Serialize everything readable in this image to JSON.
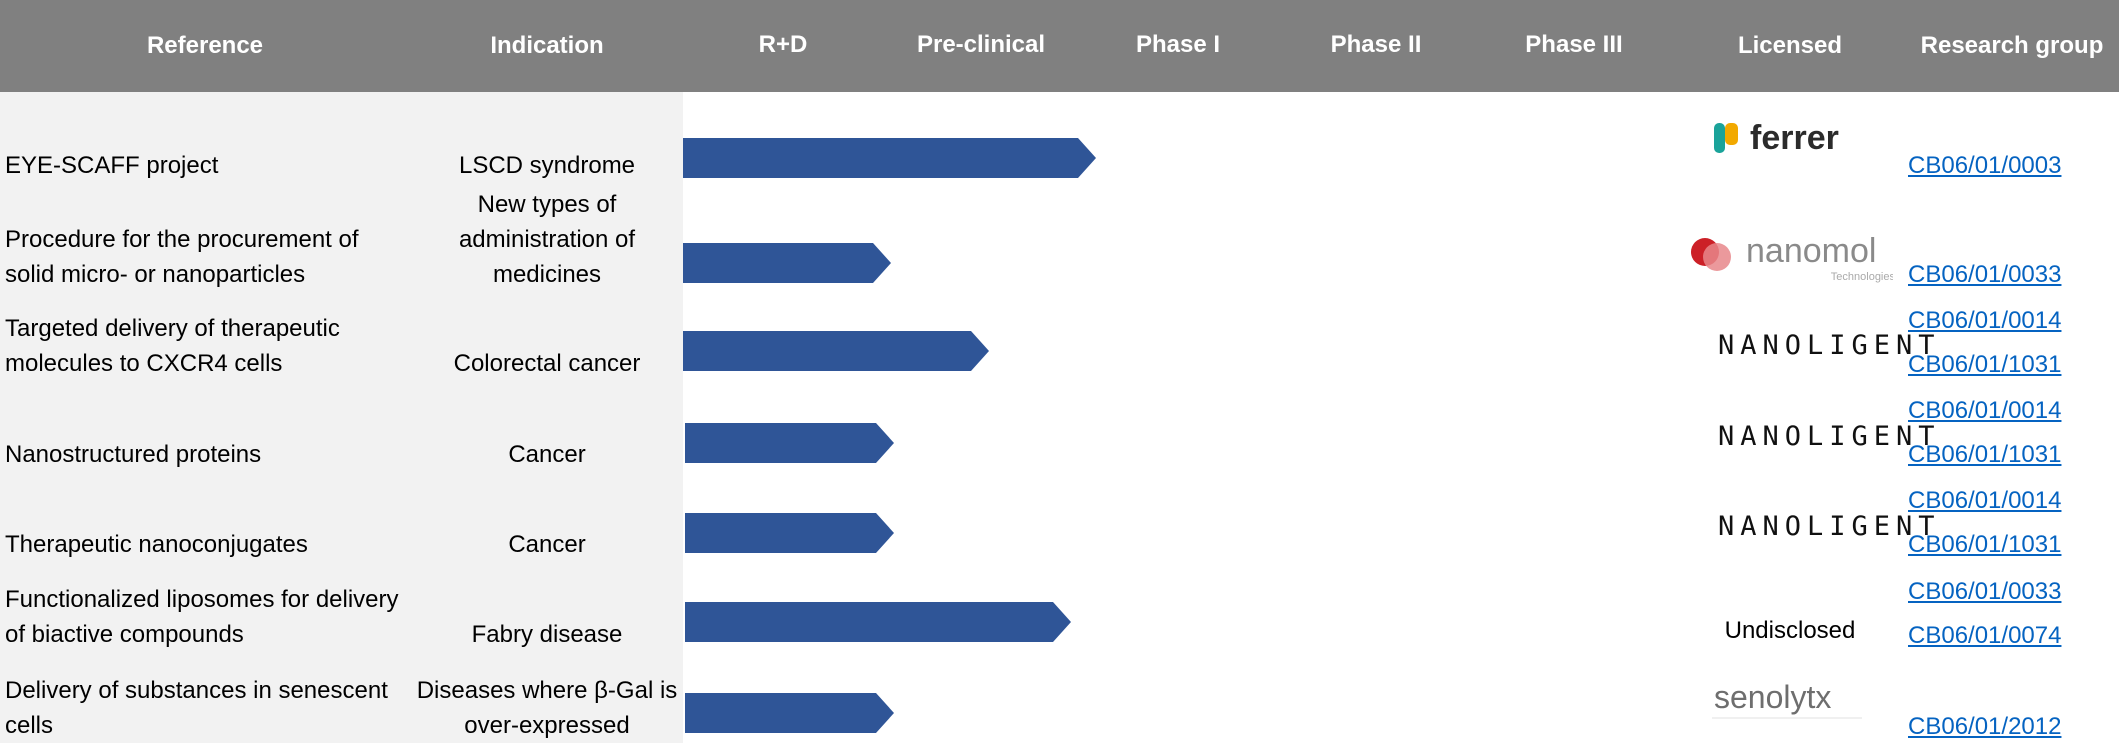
{
  "colors": {
    "header_bg": "#808080",
    "left_bg": "#f2f2f2",
    "bar": "#2f5597",
    "link": "#0563c1"
  },
  "headers": [
    "Reference",
    "Indication",
    "R+D",
    "Pre-clinical",
    "Phase I",
    "Phase II",
    "Phase III",
    "Licensed",
    "Research group"
  ],
  "rows": [
    {
      "reference": "EYE-SCAFF project",
      "indication": "LSCD syndrome",
      "progress_stage": "Pre-clinical",
      "licensed": "ferrer",
      "groups": [
        "CB06/01/0003"
      ]
    },
    {
      "reference": "Procedure for the procurement of solid micro- or nanoparticles",
      "indication": "New types of administration of medicines",
      "progress_stage": "R+D",
      "licensed": "nanomol",
      "licensed_sub": "Technologies",
      "groups": [
        "CB06/01/0033"
      ]
    },
    {
      "reference": "Targeted delivery of therapeutic molecules to CXCR4 cells",
      "indication": "Colorectal cancer",
      "progress_stage": "Pre-clinical",
      "licensed": "NANOLIGENT",
      "groups": [
        "CB06/01/0014",
        "CB06/01/1031"
      ]
    },
    {
      "reference": "Nanostructured proteins",
      "indication": "Cancer",
      "progress_stage": "R+D",
      "licensed": "NANOLIGENT",
      "groups": [
        "CB06/01/0014",
        "CB06/01/1031"
      ]
    },
    {
      "reference": "Therapeutic nanoconjugates",
      "indication": "Cancer",
      "progress_stage": "R+D",
      "licensed": "NANOLIGENT",
      "groups": [
        "CB06/01/0014",
        "CB06/01/1031"
      ]
    },
    {
      "reference": "Functionalized liposomes for delivery of biactive compounds",
      "indication": "Fabry disease",
      "progress_stage": "Pre-clinical",
      "licensed": "Undisclosed",
      "groups": [
        "CB06/01/0033",
        "CB06/01/0074"
      ]
    },
    {
      "reference": "Delivery of substances in senescent cells",
      "indication": "Diseases where β-Gal is over-expressed",
      "progress_stage": "R+D",
      "licensed": "senolytx",
      "groups": [
        "CB06/01/2012"
      ]
    }
  ]
}
